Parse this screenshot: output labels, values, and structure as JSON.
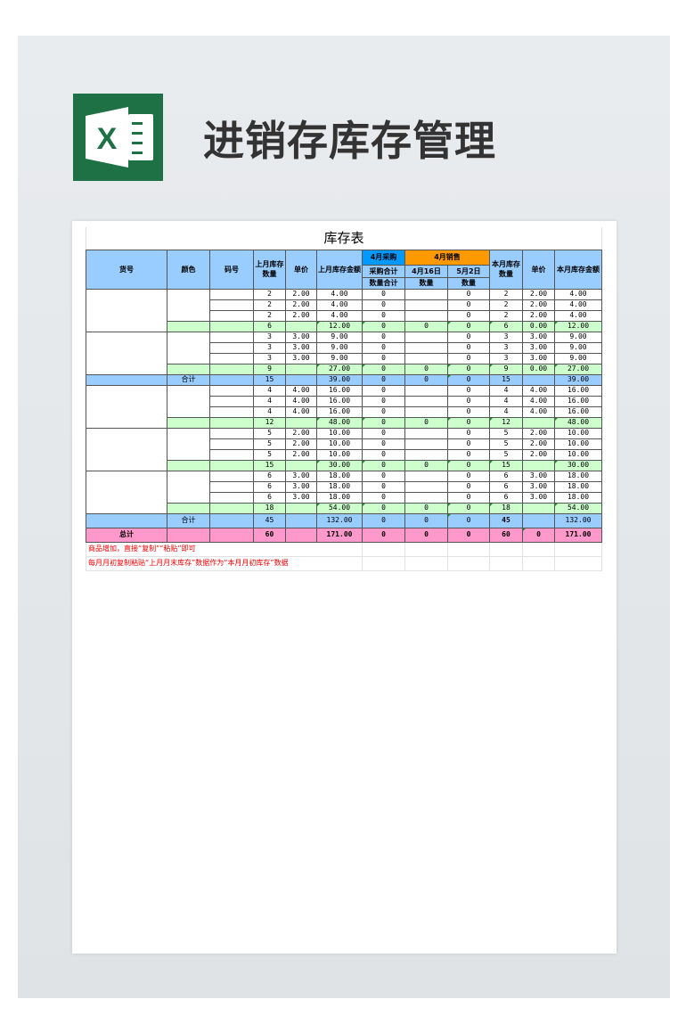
{
  "page_title": "进销存库存管理",
  "brand_color": "#1e7145",
  "sheet": {
    "title": "库存表",
    "headers": {
      "item": "货号",
      "color": "颜色",
      "code": "码号",
      "last_qty": "上月库存数量",
      "price": "单价",
      "last_amount": "上月库存金额",
      "purchase_group": "4月采购",
      "sales_group": "4月销售",
      "purchase_total": "采购合计",
      "purchase_sub": "数量合计",
      "date1": "4月16日",
      "date2": "5月2日",
      "qty_label1": "数量",
      "qty_label2": "数量",
      "cur_qty": "本月库存数量",
      "cur_price": "单价",
      "cur_amount": "本月库存金额"
    },
    "group_colors": {
      "purchase": "#0099ff",
      "sales": "#ff9900"
    },
    "sections": [
      {
        "groups": [
          {
            "rows": [
              [
                2,
                "2.00",
                "4.00",
                0,
                "",
                0,
                2,
                "2.00",
                "4.00"
              ],
              [
                2,
                "2.00",
                "4.00",
                0,
                "",
                0,
                2,
                "2.00",
                "4.00"
              ],
              [
                2,
                "2.00",
                "4.00",
                0,
                "",
                0,
                2,
                "2.00",
                "4.00"
              ]
            ],
            "subtotal": [
              6,
              "",
              "12.00",
              0,
              0,
              0,
              6,
              "0.00",
              "12.00"
            ]
          },
          {
            "rows": [
              [
                3,
                "3.00",
                "9.00",
                0,
                "",
                0,
                3,
                "3.00",
                "9.00"
              ],
              [
                3,
                "3.00",
                "9.00",
                0,
                "",
                0,
                3,
                "3.00",
                "9.00"
              ],
              [
                3,
                "3.00",
                "9.00",
                0,
                "",
                0,
                3,
                "3.00",
                "9.00"
              ]
            ],
            "subtotal": [
              9,
              "",
              "27.00",
              0,
              0,
              0,
              9,
              "0.00",
              "27.00"
            ]
          }
        ],
        "total_label": "合计",
        "total": [
          15,
          "",
          "39.00",
          0,
          0,
          0,
          15,
          "",
          "39.00"
        ]
      },
      {
        "groups": [
          {
            "rows": [
              [
                4,
                "4.00",
                "16.00",
                0,
                "",
                0,
                4,
                "4.00",
                "16.00"
              ],
              [
                4,
                "4.00",
                "16.00",
                0,
                "",
                0,
                4,
                "4.00",
                "16.00"
              ],
              [
                4,
                "4.00",
                "16.00",
                0,
                "",
                0,
                4,
                "4.00",
                "16.00"
              ]
            ],
            "subtotal": [
              12,
              "",
              "48.00",
              0,
              0,
              0,
              12,
              "",
              "48.00"
            ]
          },
          {
            "rows": [
              [
                5,
                "2.00",
                "10.00",
                0,
                "",
                0,
                5,
                "2.00",
                "10.00"
              ],
              [
                5,
                "2.00",
                "10.00",
                0,
                "",
                0,
                5,
                "2.00",
                "10.00"
              ],
              [
                5,
                "2.00",
                "10.00",
                0,
                "",
                0,
                5,
                "2.00",
                "10.00"
              ]
            ],
            "subtotal": [
              15,
              "",
              "30.00",
              0,
              0,
              0,
              15,
              "",
              "30.00"
            ]
          },
          {
            "rows": [
              [
                6,
                "3.00",
                "18.00",
                0,
                "",
                0,
                6,
                "3.00",
                "18.00"
              ],
              [
                6,
                "3.00",
                "18.00",
                0,
                "",
                0,
                6,
                "3.00",
                "18.00"
              ],
              [
                6,
                "3.00",
                "18.00",
                0,
                "",
                0,
                6,
                "3.00",
                "18.00"
              ]
            ],
            "subtotal": [
              18,
              "",
              "54.00",
              0,
              0,
              0,
              18,
              "",
              "54.00"
            ]
          }
        ],
        "total_label": "合计",
        "total": [
          45,
          "",
          "132.00",
          0,
          0,
          0,
          45,
          "",
          "132.00"
        ]
      }
    ],
    "grand_total_label": "总计",
    "grand_total": [
      60,
      "",
      "171.00",
      0,
      0,
      0,
      60,
      0,
      "171.00"
    ],
    "notes": [
      "商品增加，直接“复制”“粘贴”即可",
      "每月月初复制粘贴“上月月末库存”数据作为“本月月初库存”数据"
    ]
  }
}
